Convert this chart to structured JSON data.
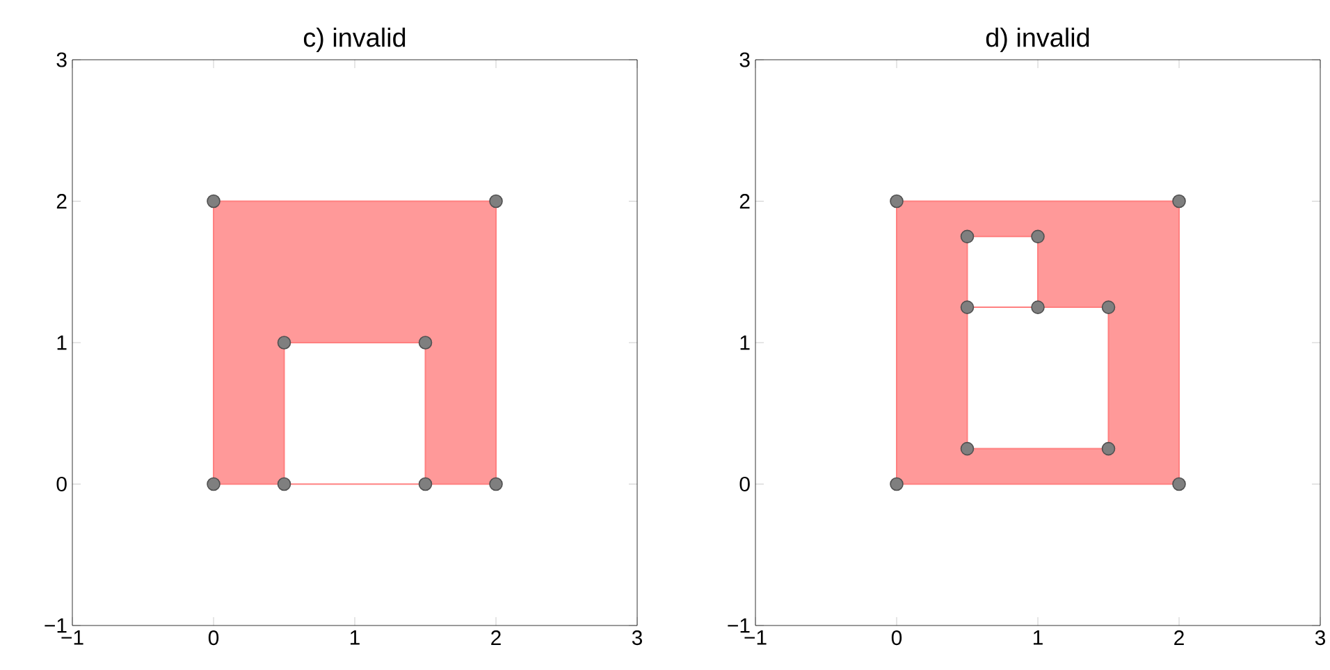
{
  "chart_data": [
    {
      "type": "area",
      "title": "c) invalid",
      "xlim": [
        -1,
        3
      ],
      "ylim": [
        -1,
        3
      ],
      "xticks": [
        {
          "value": -1,
          "label": "−1"
        },
        0,
        1,
        2,
        3
      ],
      "yticks": [
        {
          "value": -1,
          "label": "−1"
        },
        0,
        1,
        2,
        3
      ],
      "grid": false,
      "series": [
        {
          "color": "#ff9999",
          "x": [
            0,
            0,
            2,
            2,
            0,
            null,
            0.5,
            1.5,
            1.5,
            0.5,
            0.5
          ],
          "values": [
            0,
            2,
            2,
            0,
            0,
            null,
            0,
            0,
            1,
            1,
            0
          ]
        },
        {
          "type": "scatter",
          "color": "#7f7f7f",
          "marker": "circle",
          "x": [
            0,
            0,
            2,
            2,
            0.5,
            0.5,
            1.5,
            1.5
          ],
          "values": [
            0,
            2,
            2,
            0,
            0,
            1,
            1,
            0
          ]
        }
      ]
    },
    {
      "type": "area",
      "title": "d) invalid",
      "xlim": [
        -1,
        3
      ],
      "ylim": [
        -1,
        3
      ],
      "xticks": [
        {
          "value": -1,
          "label": "−1"
        },
        0,
        1,
        2,
        3
      ],
      "yticks": [
        {
          "value": -1,
          "label": "−1"
        },
        0,
        1,
        2,
        3
      ],
      "grid": false,
      "series": [
        {
          "color": "#ff9999",
          "x": [
            0,
            0,
            2,
            2,
            0,
            null,
            0.5,
            1.5,
            1.5,
            0.5,
            0.5,
            null,
            0.5,
            1,
            1,
            0.5,
            0.5
          ],
          "values": [
            0,
            2,
            2,
            0,
            0,
            null,
            0.25,
            0.25,
            1.25,
            1.25,
            0.25,
            null,
            1.25,
            1.25,
            1.75,
            1.75,
            1.25
          ]
        },
        {
          "type": "scatter",
          "color": "#7f7f7f",
          "marker": "circle",
          "x": [
            0,
            0,
            2,
            2,
            0.5,
            1.5,
            1.5,
            0.5,
            1,
            1,
            0.5
          ],
          "values": [
            0,
            2,
            2,
            0,
            0.25,
            0.25,
            1.25,
            1.25,
            1.25,
            1.75,
            1.75
          ]
        }
      ]
    }
  ]
}
